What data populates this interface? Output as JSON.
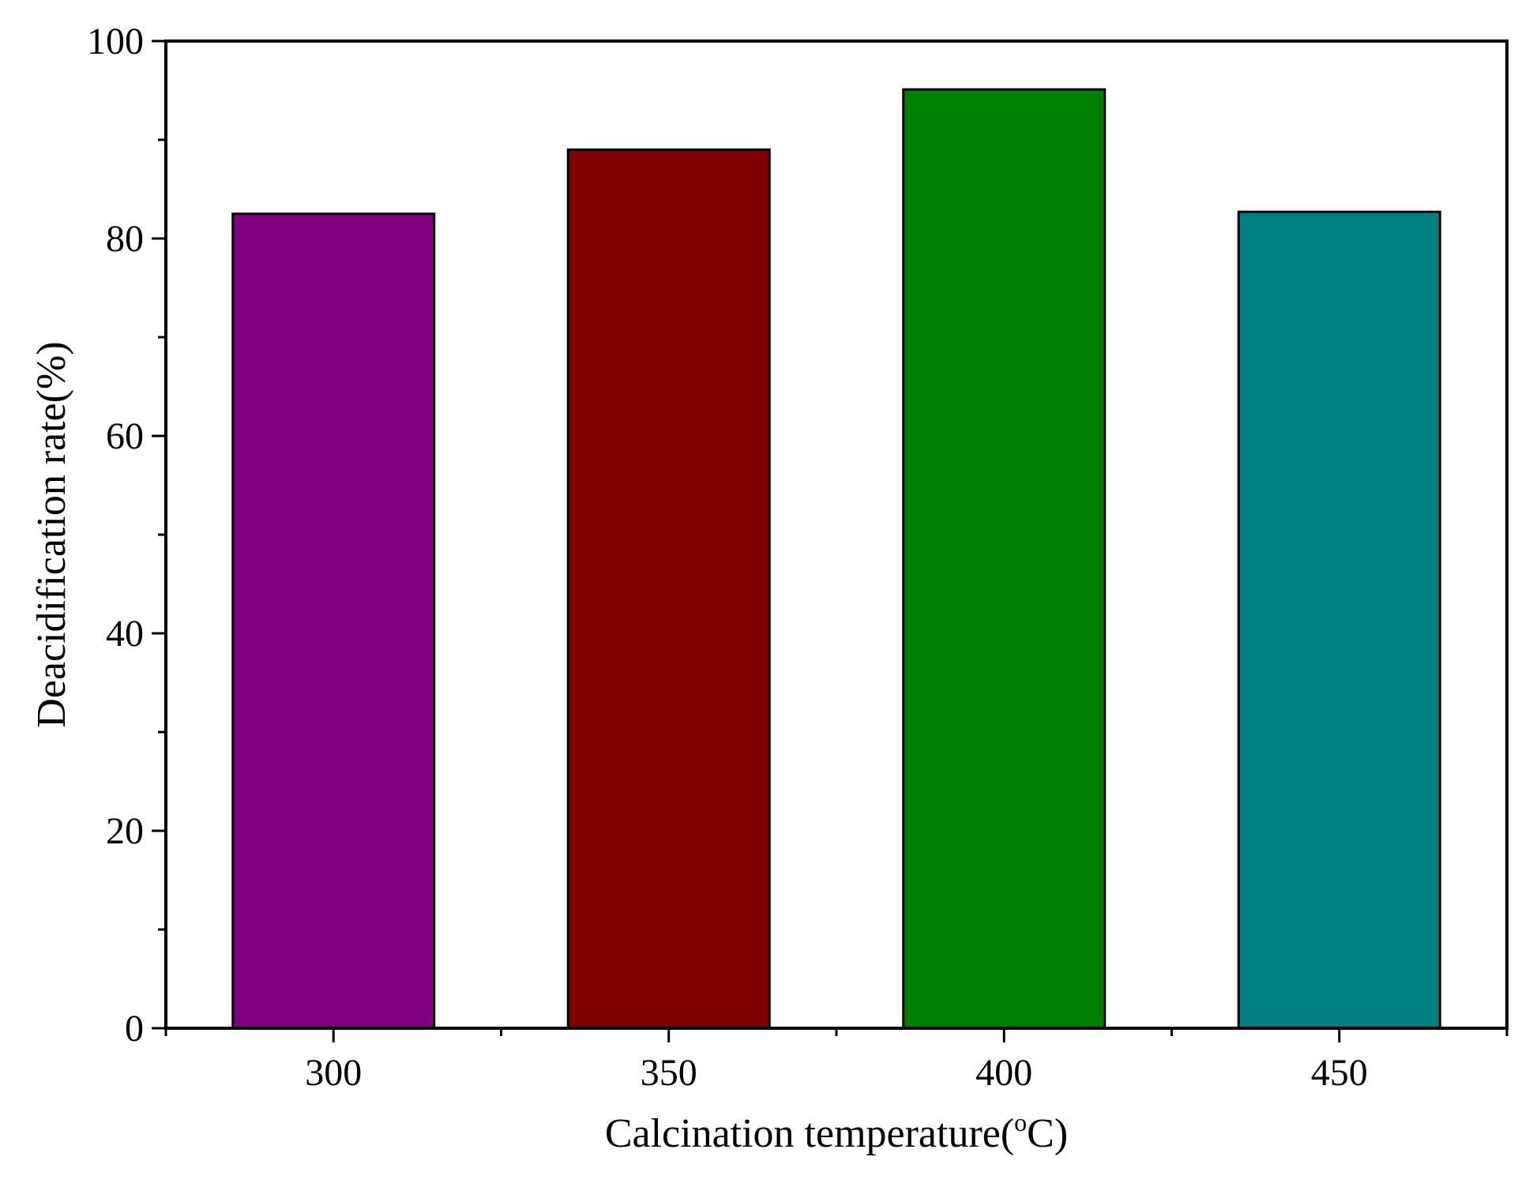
{
  "chart_data": {
    "type": "bar",
    "categories": [
      "300",
      "350",
      "400",
      "450"
    ],
    "x": [
      300,
      350,
      400,
      450
    ],
    "values": [
      82.5,
      89.0,
      95.1,
      82.7
    ],
    "bar_colors": [
      "#800080",
      "#800000",
      "#008000",
      "#008080"
    ],
    "title": "",
    "xlabel": "Calcination temperature(",
    "xlabel_sup": "o",
    "xlabel_tail": "C)",
    "ylabel": "Deacidification rate(%)",
    "xlim": [
      275,
      475
    ],
    "ylim": [
      0,
      100
    ],
    "yticks": [
      0,
      20,
      40,
      60,
      80,
      100
    ],
    "ytick_labels": [
      "0",
      "20",
      "40",
      "60",
      "80",
      "100"
    ],
    "y_minor_ticks": [
      10,
      30,
      50,
      70,
      90
    ],
    "x_minor_ticks": [
      325,
      375,
      425
    ],
    "grid": false,
    "legend": "none"
  }
}
